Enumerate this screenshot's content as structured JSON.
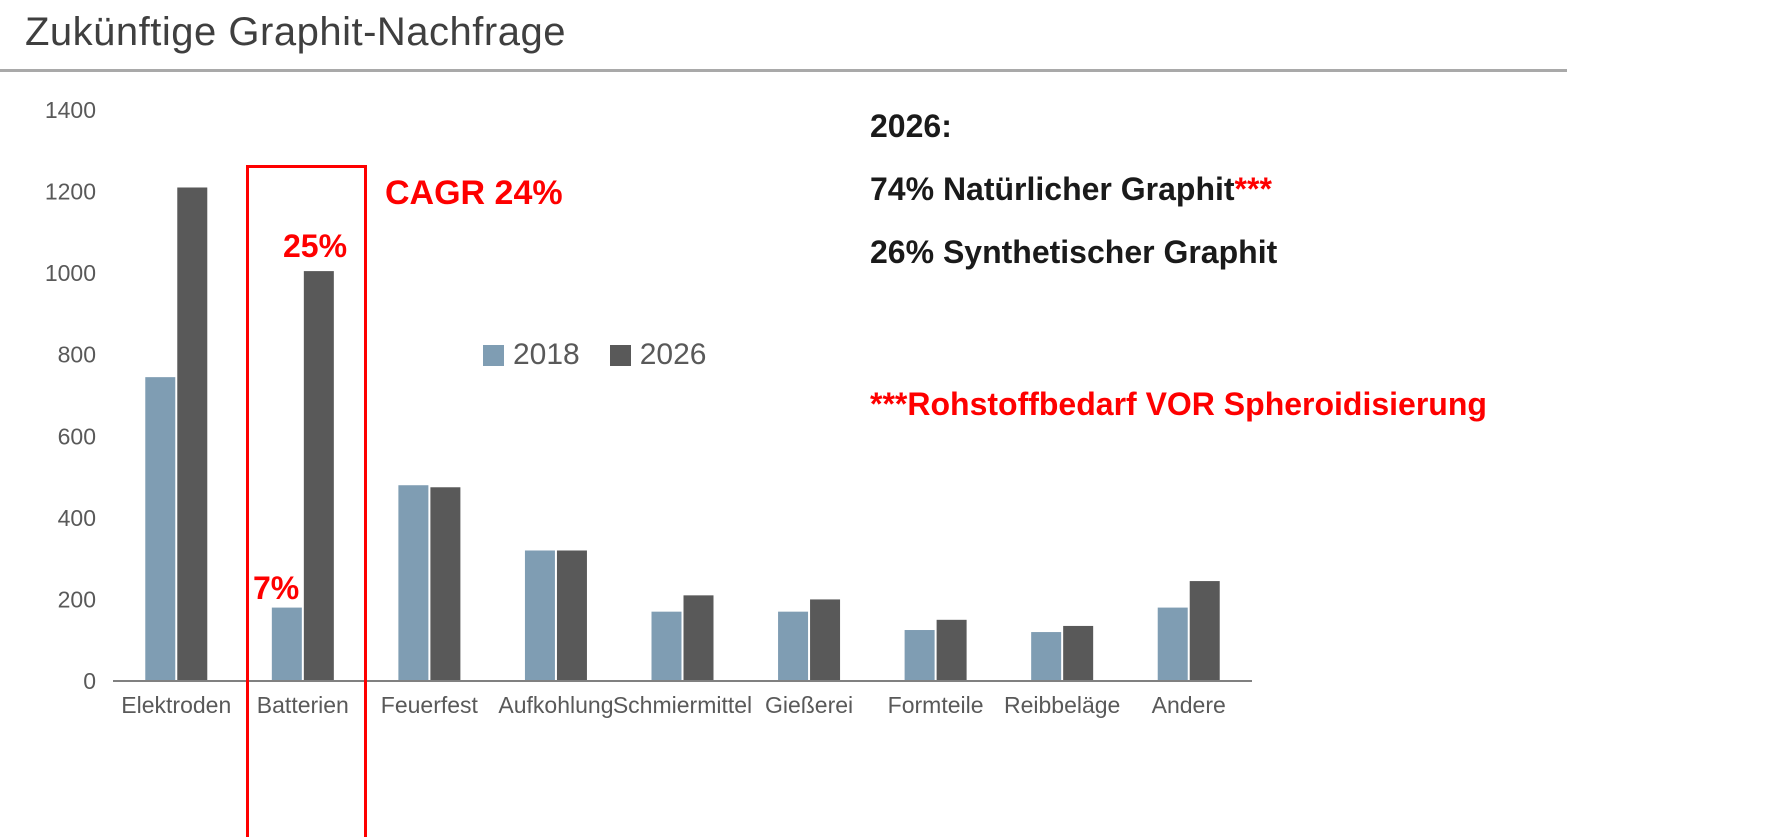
{
  "page": {
    "title": "Zukünftige Graphit-Nachfrage"
  },
  "chart_data": {
    "type": "bar",
    "title": "Zukünftige Graphit-Nachfrage",
    "categories": [
      "Elektroden",
      "Batterien",
      "Feuerfest",
      "Aufkohlung",
      "Schmiermittel",
      "Gießerei",
      "Formteile",
      "Reibbeläge",
      "Andere"
    ],
    "series": [
      {
        "name": "2018",
        "color": "#7f9db3",
        "values": [
          745,
          180,
          480,
          320,
          170,
          170,
          125,
          120,
          180
        ]
      },
      {
        "name": "2026",
        "color": "#595959",
        "values": [
          1210,
          1005,
          475,
          320,
          210,
          200,
          150,
          135,
          245
        ]
      }
    ],
    "xlabel": "",
    "ylabel": "",
    "ylim": [
      0,
      1400
    ],
    "yticks": [
      0,
      200,
      400,
      600,
      800,
      1000,
      1200,
      1400
    ],
    "grid": false,
    "legend_position": "center-inside",
    "annotations": {
      "cagr_label": "CAGR 24%",
      "pct_2026": "25%",
      "pct_2018": "7%",
      "highlight_category": "Batterien"
    }
  },
  "side_text": {
    "heading": "2026:",
    "line1_main": "74% Natürlicher Graphit",
    "line1_asterisks": "***",
    "line2": "26% Synthetischer Graphit",
    "footnote": "***Rohstoffbedarf VOR Spheroidisierung"
  },
  "colors": {
    "accent_red": "#fe0000",
    "series_2018": "#7f9db3",
    "series_2026": "#595959",
    "axis_text": "#595959",
    "title_text": "#3f3f3f"
  }
}
